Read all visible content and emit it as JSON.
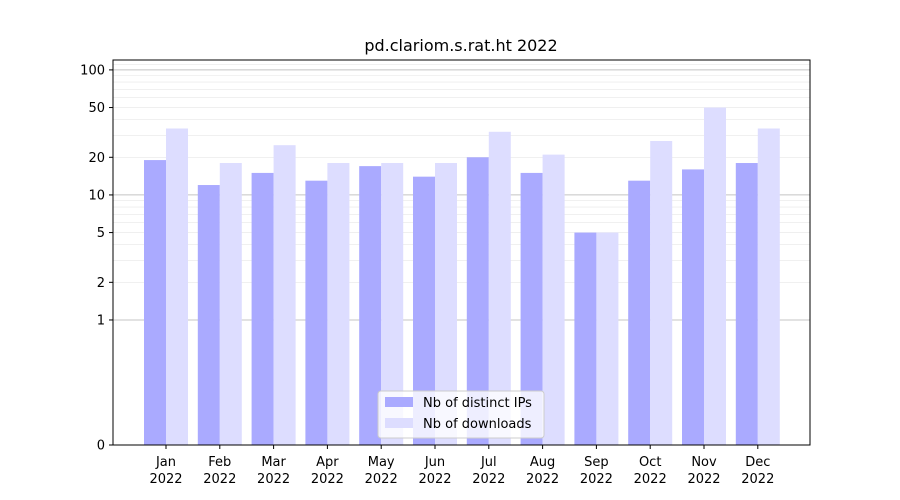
{
  "chart_data": {
    "type": "bar",
    "title": "pd.clariom.s.rat.ht 2022",
    "xlabel": "",
    "ylabel": "",
    "y_scale": "symlog",
    "ylim": [
      0,
      120
    ],
    "yticks": [
      0,
      1,
      2,
      5,
      10,
      20,
      50,
      100
    ],
    "categories": [
      [
        "Jan",
        "2022"
      ],
      [
        "Feb",
        "2022"
      ],
      [
        "Mar",
        "2022"
      ],
      [
        "Apr",
        "2022"
      ],
      [
        "May",
        "2022"
      ],
      [
        "Jun",
        "2022"
      ],
      [
        "Jul",
        "2022"
      ],
      [
        "Aug",
        "2022"
      ],
      [
        "Sep",
        "2022"
      ],
      [
        "Oct",
        "2022"
      ],
      [
        "Nov",
        "2022"
      ],
      [
        "Dec",
        "2022"
      ]
    ],
    "series": [
      {
        "name": "Nb of distinct IPs",
        "color": "#aaaaff",
        "values": [
          19,
          12,
          15,
          13,
          17,
          14,
          20,
          15,
          5,
          13,
          16,
          18
        ]
      },
      {
        "name": "Nb of downloads",
        "color": "#ddddff",
        "values": [
          34,
          18,
          25,
          18,
          18,
          18,
          32,
          21,
          5,
          27,
          50,
          34
        ]
      }
    ],
    "grid": true,
    "legend_position": "bottom-center"
  }
}
